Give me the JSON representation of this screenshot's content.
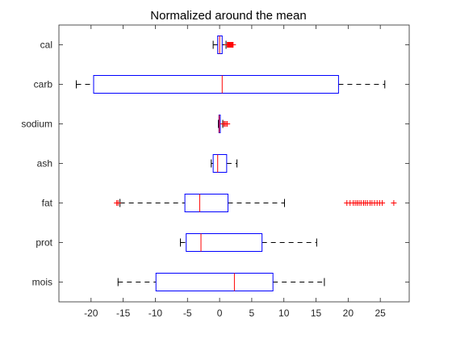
{
  "chart_data": {
    "type": "boxplot",
    "orientation": "horizontal",
    "title": "Normalized around the mean",
    "xlabel": "",
    "ylabel": "",
    "xlim": [
      -25,
      29.5
    ],
    "xticks": [
      -20,
      -15,
      -10,
      -5,
      0,
      5,
      10,
      15,
      20,
      25
    ],
    "grid": false,
    "colors": {
      "box": "#0000ff",
      "median": "#ff0000",
      "whisker": "#000000",
      "outlier": "#ff0000",
      "axis": "#262626"
    },
    "categories": [
      "cal",
      "carb",
      "sodium",
      "ash",
      "fat",
      "prot",
      "mois"
    ],
    "boxes": [
      {
        "label": "cal",
        "whisker_low": -1.0,
        "q1": -0.3,
        "median": 0.0,
        "q3": 0.4,
        "whisker_high": 1.0,
        "outliers": [
          1.2,
          1.3,
          1.4,
          1.5,
          1.6,
          1.7,
          1.8,
          1.9,
          2.0,
          2.1
        ]
      },
      {
        "label": "carb",
        "whisker_low": -22.3,
        "q1": -19.6,
        "median": 0.4,
        "q3": 18.5,
        "whisker_high": 25.7,
        "outliers": []
      },
      {
        "label": "sodium",
        "whisker_low": -0.2,
        "q1": -0.1,
        "median": -0.05,
        "q3": 0.1,
        "whisker_high": 0.5,
        "outliers": [
          0.6,
          0.8,
          1.0,
          1.2
        ]
      },
      {
        "label": "ash",
        "whisker_low": -1.3,
        "q1": -1.0,
        "median": -0.3,
        "q3": 1.1,
        "whisker_high": 2.7,
        "outliers": []
      },
      {
        "label": "fat",
        "whisker_low": -15.5,
        "q1": -5.4,
        "median": -3.1,
        "q3": 1.3,
        "whisker_high": 10.1,
        "outliers": [
          -16.0,
          -15.8,
          19.8,
          20.3,
          20.8,
          21.1,
          21.4,
          21.7,
          22.0,
          22.4,
          22.7,
          23.0,
          23.4,
          23.7,
          24.1,
          24.5,
          24.9,
          25.3,
          27.1
        ]
      },
      {
        "label": "prot",
        "whisker_low": -6.1,
        "q1": -5.2,
        "median": -2.9,
        "q3": 6.6,
        "whisker_high": 15.1,
        "outliers": []
      },
      {
        "label": "mois",
        "whisker_low": -15.8,
        "q1": -9.9,
        "median": 2.3,
        "q3": 8.3,
        "whisker_high": 16.3,
        "outliers": []
      }
    ]
  }
}
